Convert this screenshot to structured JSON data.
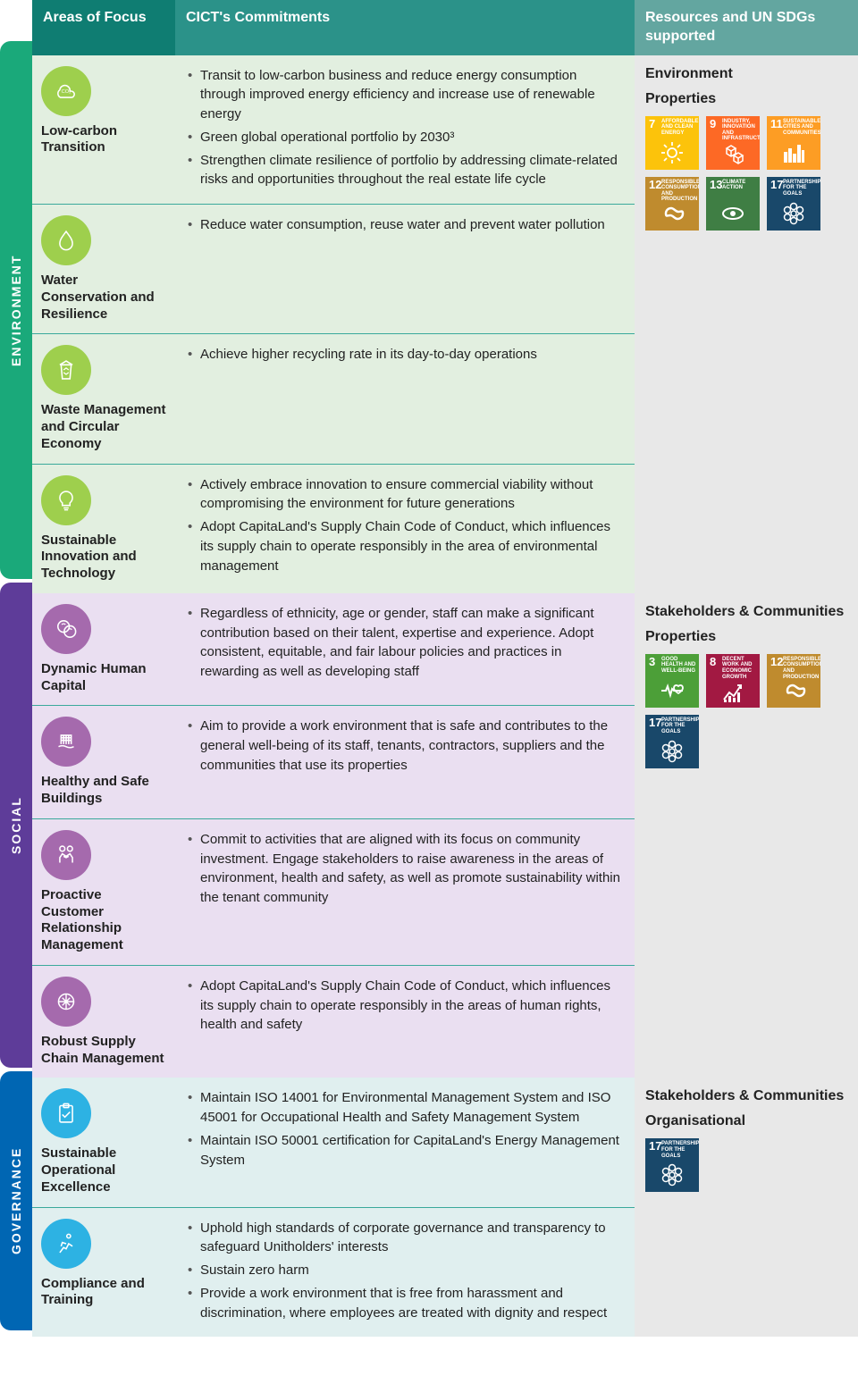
{
  "header": {
    "areas": "Areas\nof Focus",
    "commitments": "CICT's\nCommitments",
    "resources": "Resources and UN SDGs supported"
  },
  "rail": {
    "env": "ENVIRONMENT",
    "soc": "SOCIAL",
    "gov": "GOVERNANCE"
  },
  "sections": {
    "env": {
      "res_headings": [
        "Environment",
        "Properties"
      ],
      "sdgs": [
        {
          "num": "7",
          "label": "AFFORDABLE AND CLEAN ENERGY",
          "color": "#fcc30b"
        },
        {
          "num": "9",
          "label": "INDUSTRY, INNOVATION AND INFRASTRUCTURE",
          "color": "#fd6925"
        },
        {
          "num": "11",
          "label": "SUSTAINABLE CITIES AND COMMUNITIES",
          "color": "#fd9d24"
        },
        {
          "num": "12",
          "label": "RESPONSIBLE CONSUMPTION AND PRODUCTION",
          "color": "#bf8b2e"
        },
        {
          "num": "13",
          "label": "CLIMATE ACTION",
          "color": "#3f7e44"
        },
        {
          "num": "17",
          "label": "PARTNERSHIPS FOR THE GOALS",
          "color": "#19486a"
        }
      ],
      "rows": [
        {
          "label": "Low-carbon Transition",
          "items": [
            "Transit to low-carbon business and reduce energy consumption through improved energy efficiency and increase use of renewable energy",
            "Green global operational portfolio by 2030³",
            "Strengthen climate resilience of portfolio by addressing climate-related risks and opportunities throughout the real estate life cycle"
          ]
        },
        {
          "label": "Water Conservation and Resilience",
          "items": [
            "Reduce water consumption, reuse water and prevent water pollution"
          ]
        },
        {
          "label": "Waste Management and Circular Economy",
          "items": [
            "Achieve higher recycling rate in its day-to-day operations"
          ]
        },
        {
          "label": "Sustainable Innovation and Technology",
          "items": [
            "Actively embrace innovation to ensure commercial viability without compromising the environment for future generations",
            "Adopt CapitaLand's Supply Chain Code of Conduct, which influences its supply chain to operate responsibly in the area of environmental management"
          ]
        }
      ]
    },
    "soc": {
      "res_headings": [
        "Stakeholders & Communities",
        "Properties"
      ],
      "sdgs": [
        {
          "num": "3",
          "label": "GOOD HEALTH AND WELL-BEING",
          "color": "#4c9f38"
        },
        {
          "num": "8",
          "label": "DECENT WORK AND ECONOMIC GROWTH",
          "color": "#a21942"
        },
        {
          "num": "12",
          "label": "RESPONSIBLE CONSUMPTION AND PRODUCTION",
          "color": "#bf8b2e"
        },
        {
          "num": "17",
          "label": "PARTNERSHIPS FOR THE GOALS",
          "color": "#19486a"
        }
      ],
      "rows": [
        {
          "label": "Dynamic Human Capital",
          "items": [
            "Regardless of ethnicity, age or gender, staff can make a significant contribution based on their talent, expertise and experience. Adopt consistent, equitable, and fair labour policies and practices in rewarding as well as developing staff"
          ]
        },
        {
          "label": "Healthy and Safe Buildings",
          "items": [
            "Aim to provide a work environment that is safe and contributes to the general well-being of its staff, tenants, contractors, suppliers and the communities that use its properties"
          ]
        },
        {
          "label": "Proactive Customer Relationship Management",
          "items": [
            "Commit to activities that are aligned with its focus on community investment. Engage stakeholders to raise awareness in the areas of environment, health and safety, as well as promote sustainability within the tenant community"
          ]
        },
        {
          "label": "Robust Supply Chain Management",
          "items": [
            "Adopt CapitaLand's Supply Chain Code of Conduct, which influences its supply chain to operate responsibly in the areas of human rights, health and safety"
          ]
        }
      ]
    },
    "gov": {
      "res_headings": [
        "Stakeholders & Communities",
        "Organisational"
      ],
      "sdgs": [
        {
          "num": "17",
          "label": "PARTNERSHIPS FOR THE GOALS",
          "color": "#19486a"
        }
      ],
      "rows": [
        {
          "label": "Sustainable Operational Excellence",
          "items": [
            "Maintain ISO 14001 for Environmental Management System and ISO 45001 for Occupational Health and Safety Management System",
            "Maintain ISO 50001 certification for CapitaLand's Energy Management System"
          ]
        },
        {
          "label": "Compliance and Training",
          "items": [
            "Uphold high standards of corporate governance and transparency to safeguard Unitholders' interests",
            "Sustain zero harm",
            "Provide a work environment that is free from harassment and discrimination, where employees are treated with dignity and respect"
          ]
        }
      ]
    }
  },
  "icons": {
    "env": [
      "co2",
      "drop",
      "recycle",
      "bulb"
    ],
    "soc": [
      "head",
      "building",
      "people",
      "chain"
    ],
    "gov": [
      "clipboard",
      "runner"
    ]
  },
  "sdg_icons": {
    "3": "heartbeat",
    "7": "sun",
    "8": "growth",
    "9": "cubes",
    "11": "city",
    "12": "infinity",
    "13": "eye",
    "17": "flower"
  }
}
